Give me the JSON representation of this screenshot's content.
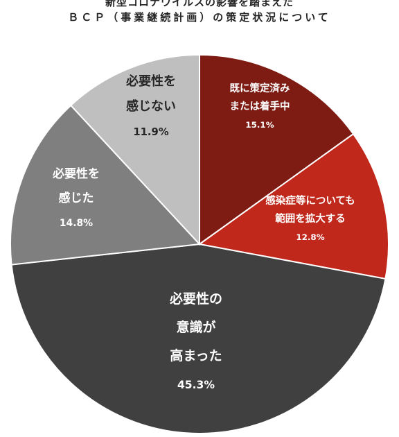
{
  "title": {
    "line1": "新型コロナウイルスの影響を踏まえた",
    "line2": "ＢＣＰ（事業継続計画）の策定状況について"
  },
  "colors": {
    "slice_formulated": "#7e1c14",
    "slice_expand": "#c0281b",
    "slice_awareness": "#404040",
    "slice_felt_need": "#7f7f7f",
    "slice_no_need": "#bfbfbf",
    "label_light": "#ffffff",
    "label_dark": "#262626"
  },
  "chart_data": {
    "type": "pie",
    "title": "新型コロナウイルスの影響を踏まえたＢＣＰ（事業継続計画）の策定状況について",
    "slices": [
      {
        "lines": [
          "既に策定済み",
          "または着手中"
        ],
        "value_label": "15.1%",
        "value": 15.1
      },
      {
        "lines": [
          "感染症等についても",
          "範囲を拡大する"
        ],
        "value_label": "12.8%",
        "value": 12.8
      },
      {
        "lines": [
          "必要性の",
          "意識が",
          "高まった"
        ],
        "value_label": "45.3%",
        "value": 45.3
      },
      {
        "lines": [
          "必要性を",
          "感じた"
        ],
        "value_label": "14.8%",
        "value": 14.8
      },
      {
        "lines": [
          "必要性を",
          "感じない"
        ],
        "value_label": "11.9%",
        "value": 11.9
      }
    ]
  }
}
